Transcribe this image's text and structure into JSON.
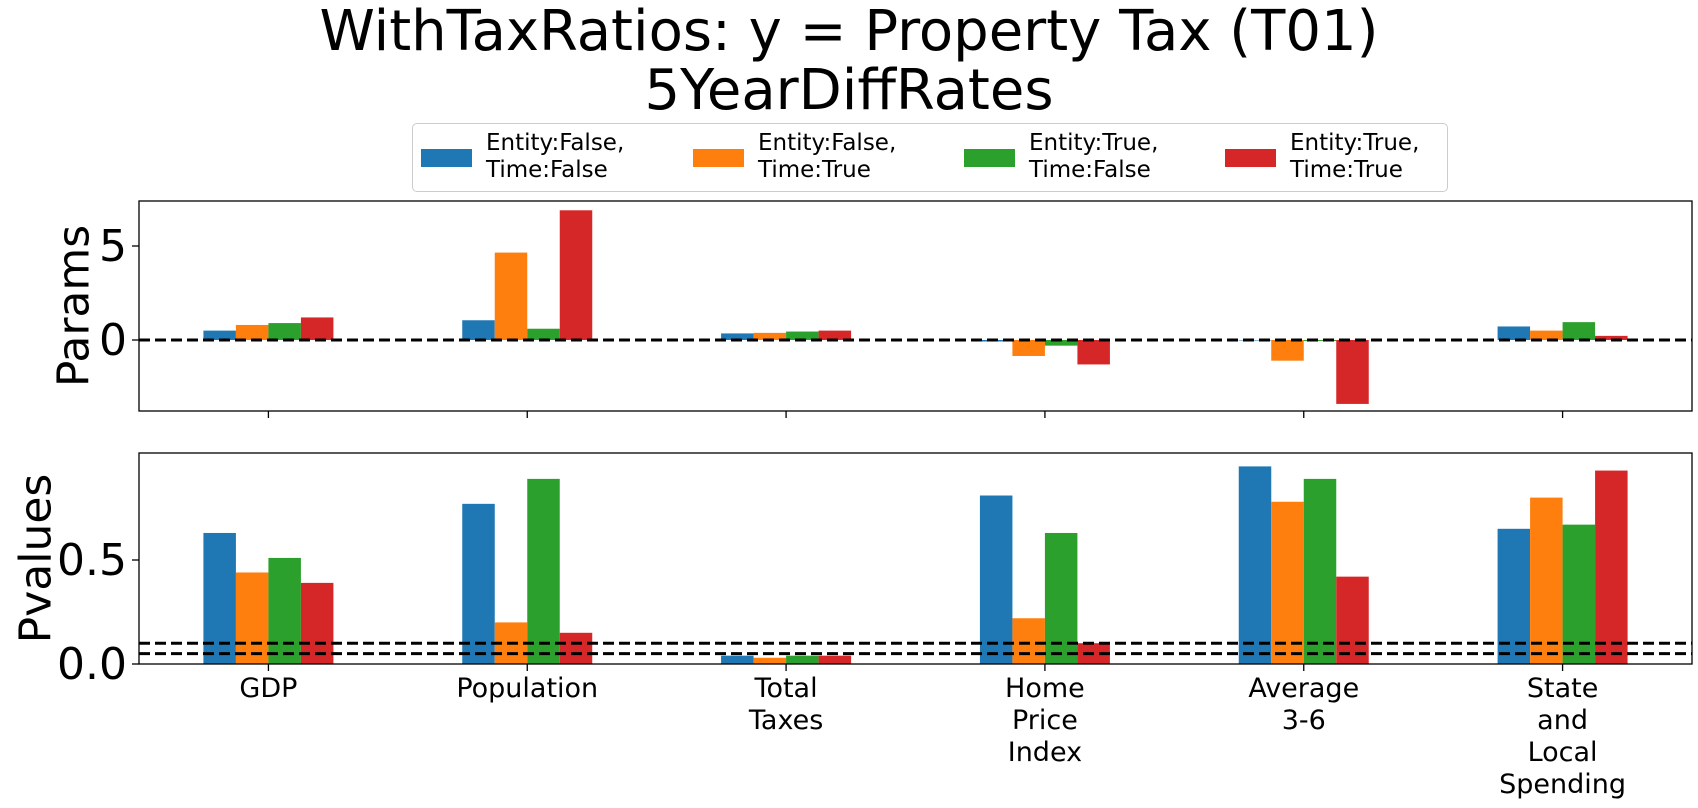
{
  "title_line1": "WithTaxRatios: y = Property Tax (T01)",
  "title_line2": "5YearDiffRates",
  "chart_data": [
    {
      "type": "bar",
      "ylabel": "Params",
      "ylim": [
        -3.8,
        7.5
      ],
      "yticks": [
        0,
        5
      ],
      "ytick_labels": [
        "0",
        "5"
      ],
      "hlines": [
        0
      ],
      "grid": false,
      "categories": [
        "GDP",
        "Population",
        "Total\nTaxes",
        "Home\nPrice\nIndex",
        "Average\n3-6",
        "State\nand\nLocal\nSpending"
      ],
      "series": [
        {
          "name": "Entity:False,\nTime:False",
          "color": "#1f77b4",
          "values": [
            0.5,
            1.05,
            0.35,
            -0.08,
            0.0,
            0.72
          ]
        },
        {
          "name": "Entity:False,\nTime:True",
          "color": "#ff7f0e",
          "values": [
            0.8,
            4.65,
            0.38,
            -0.85,
            -1.1,
            0.5
          ]
        },
        {
          "name": "Entity:True,\nTime:False",
          "color": "#2ca02c",
          "values": [
            0.9,
            0.6,
            0.45,
            -0.3,
            -0.05,
            0.95
          ]
        },
        {
          "name": "Entity:True,\nTime:True",
          "color": "#d62728",
          "values": [
            1.2,
            6.9,
            0.5,
            -1.3,
            -3.4,
            0.22
          ]
        }
      ]
    },
    {
      "type": "bar",
      "ylabel": "Pvalues",
      "ylim": [
        0,
        1.0
      ],
      "yticks": [
        0.0,
        0.5
      ],
      "ytick_labels": [
        "0.0",
        "0.5"
      ],
      "hlines": [
        0.05,
        0.1
      ],
      "grid": false,
      "categories": [
        "GDP",
        "Population",
        "Total\nTaxes",
        "Home\nPrice\nIndex",
        "Average\n3-6",
        "State\nand\nLocal\nSpending"
      ],
      "series": [
        {
          "name": "Entity:False,\nTime:False",
          "color": "#1f77b4",
          "values": [
            0.63,
            0.77,
            0.04,
            0.81,
            0.95,
            0.65
          ]
        },
        {
          "name": "Entity:False,\nTime:True",
          "color": "#ff7f0e",
          "values": [
            0.44,
            0.2,
            0.03,
            0.22,
            0.78,
            0.8
          ]
        },
        {
          "name": "Entity:True,\nTime:False",
          "color": "#2ca02c",
          "values": [
            0.51,
            0.89,
            0.04,
            0.63,
            0.89,
            0.67
          ]
        },
        {
          "name": "Entity:True,\nTime:True",
          "color": "#d62728",
          "values": [
            0.39,
            0.15,
            0.04,
            0.1,
            0.42,
            0.93
          ]
        }
      ]
    }
  ],
  "legend": {
    "placement": "top-center",
    "items": [
      {
        "label": "Entity:False,\nTime:False",
        "color": "#1f77b4"
      },
      {
        "label": "Entity:False,\nTime:True",
        "color": "#ff7f0e"
      },
      {
        "label": "Entity:True,\nTime:False",
        "color": "#2ca02c"
      },
      {
        "label": "Entity:True,\nTime:True",
        "color": "#d62728"
      }
    ]
  }
}
